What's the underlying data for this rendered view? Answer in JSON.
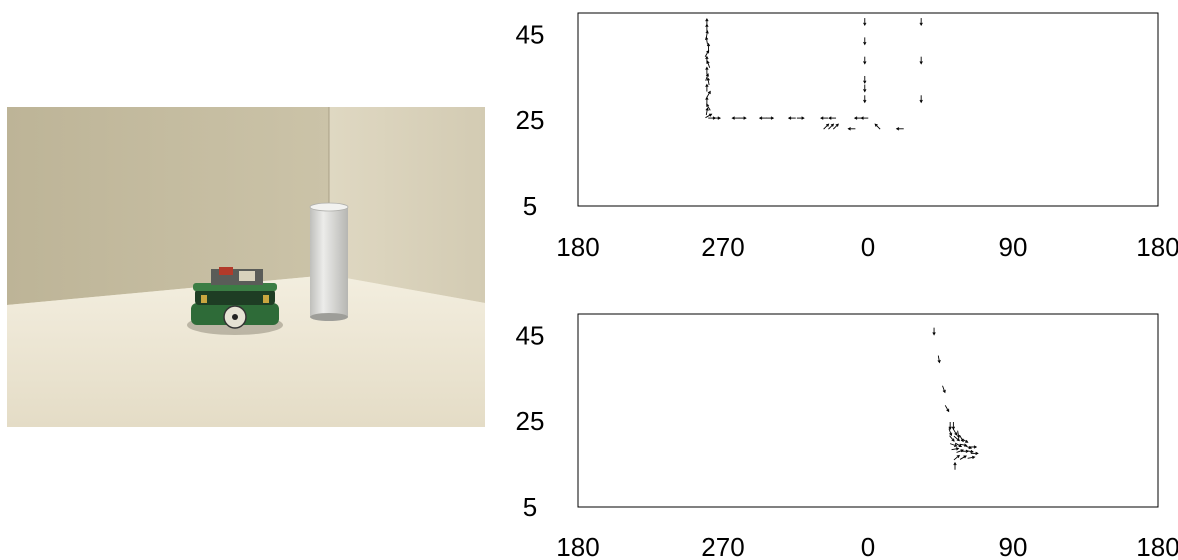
{
  "photo": {
    "description_icon": "robot-and-cylinder-photo",
    "colors": {
      "wall": "#c9c1a6",
      "floor": "#ebe4d2",
      "cylinder": "#d9d9d6",
      "robot_board": "#2f6e3a"
    }
  },
  "chart_data": [
    {
      "type": "scatter",
      "subtype": "vector-field",
      "title": "",
      "xlabel": "",
      "ylabel": "",
      "xlim": [
        180,
        540
      ],
      "ylim": [
        5,
        50
      ],
      "x_tick_labels": [
        "180",
        "270",
        "0",
        "90",
        "180"
      ],
      "x_tick_positions": [
        180,
        270,
        360,
        450,
        540
      ],
      "y_tick_labels": [
        "45",
        "25",
        "5"
      ],
      "y_tick_positions": [
        45,
        25,
        5
      ],
      "grid": false,
      "series": [
        {
          "marker": "arrow",
          "points": [
            {
              "x": 260,
              "y": 47.8,
              "angle": 90
            },
            {
              "x": 260,
              "y": 46.5,
              "angle": 90
            },
            {
              "x": 260,
              "y": 45.0,
              "angle": 80
            },
            {
              "x": 260,
              "y": 43.5,
              "angle": 100
            },
            {
              "x": 261,
              "y": 42.0,
              "angle": 90
            },
            {
              "x": 260,
              "y": 40.5,
              "angle": 60
            },
            {
              "x": 260,
              "y": 39.0,
              "angle": 90
            },
            {
              "x": 261,
              "y": 38.0,
              "angle": 110
            },
            {
              "x": 260,
              "y": 36.5,
              "angle": 90
            },
            {
              "x": 260,
              "y": 35.0,
              "angle": 70
            },
            {
              "x": 261,
              "y": 34.0,
              "angle": 100
            },
            {
              "x": 260,
              "y": 32.5,
              "angle": 90
            },
            {
              "x": 261,
              "y": 31.0,
              "angle": 60
            },
            {
              "x": 260,
              "y": 29.5,
              "angle": 90
            },
            {
              "x": 261,
              "y": 28.0,
              "angle": 120
            },
            {
              "x": 260,
              "y": 27.0,
              "angle": 80
            },
            {
              "x": 261,
              "y": 26.0,
              "angle": 30
            },
            {
              "x": 263,
              "y": 25.5,
              "angle": 0
            },
            {
              "x": 266,
              "y": 25.5,
              "angle": 0
            },
            {
              "x": 278,
              "y": 25.5,
              "angle": 180
            },
            {
              "x": 282,
              "y": 25.5,
              "angle": 0
            },
            {
              "x": 295,
              "y": 25.5,
              "angle": 180
            },
            {
              "x": 299,
              "y": 25.5,
              "angle": 0
            },
            {
              "x": 313,
              "y": 25.5,
              "angle": 180
            },
            {
              "x": 318,
              "y": 25.5,
              "angle": 0
            },
            {
              "x": 333,
              "y": 25.5,
              "angle": 180
            },
            {
              "x": 338,
              "y": 25.5,
              "angle": 180
            },
            {
              "x": 354,
              "y": 25.5,
              "angle": 180
            },
            {
              "x": 358,
              "y": 25.5,
              "angle": 180
            },
            {
              "x": 334,
              "y": 23.5,
              "angle": 45
            },
            {
              "x": 337,
              "y": 23.5,
              "angle": 45
            },
            {
              "x": 340,
              "y": 23.5,
              "angle": 45
            },
            {
              "x": 350,
              "y": 23.0,
              "angle": 180
            },
            {
              "x": 366,
              "y": 23.5,
              "angle": 135
            },
            {
              "x": 380,
              "y": 23.0,
              "angle": 180
            },
            {
              "x": 358,
              "y": 48.0,
              "angle": -90
            },
            {
              "x": 358,
              "y": 43.5,
              "angle": -90
            },
            {
              "x": 358,
              "y": 39.0,
              "angle": -90
            },
            {
              "x": 358,
              "y": 34.5,
              "angle": -90
            },
            {
              "x": 358,
              "y": 32.5,
              "angle": -90
            },
            {
              "x": 358,
              "y": 30.0,
              "angle": -90
            },
            {
              "x": 393,
              "y": 48.0,
              "angle": -90
            },
            {
              "x": 393,
              "y": 39.0,
              "angle": -90
            },
            {
              "x": 393,
              "y": 30.0,
              "angle": -90
            }
          ]
        }
      ]
    },
    {
      "type": "scatter",
      "subtype": "vector-field",
      "title": "",
      "xlabel": "",
      "ylabel": "",
      "xlim": [
        180,
        540
      ],
      "ylim": [
        5,
        50
      ],
      "x_tick_labels": [
        "180",
        "270",
        "0",
        "90",
        "180"
      ],
      "x_tick_positions": [
        180,
        270,
        360,
        450,
        540
      ],
      "y_tick_labels": [
        "45",
        "25",
        "5"
      ],
      "y_tick_positions": [
        45,
        25,
        5
      ],
      "grid": false,
      "series": [
        {
          "marker": "arrow",
          "points": [
            {
              "x": 401,
              "y": 46.0,
              "angle": -90
            },
            {
              "x": 404,
              "y": 39.5,
              "angle": -80
            },
            {
              "x": 407,
              "y": 32.5,
              "angle": -70
            },
            {
              "x": 409,
              "y": 28.0,
              "angle": -60
            },
            {
              "x": 411,
              "y": 24.0,
              "angle": -90
            },
            {
              "x": 413,
              "y": 24.0,
              "angle": -90
            },
            {
              "x": 411,
              "y": 22.5,
              "angle": -70
            },
            {
              "x": 414,
              "y": 22.5,
              "angle": -60
            },
            {
              "x": 416,
              "y": 22.0,
              "angle": -80
            },
            {
              "x": 412,
              "y": 21.0,
              "angle": -50
            },
            {
              "x": 415,
              "y": 21.0,
              "angle": -40
            },
            {
              "x": 418,
              "y": 21.0,
              "angle": -60
            },
            {
              "x": 420,
              "y": 20.5,
              "angle": -30
            },
            {
              "x": 413,
              "y": 19.5,
              "angle": -20
            },
            {
              "x": 416,
              "y": 19.5,
              "angle": -30
            },
            {
              "x": 419,
              "y": 19.5,
              "angle": -10
            },
            {
              "x": 422,
              "y": 19.0,
              "angle": -20
            },
            {
              "x": 425,
              "y": 19.0,
              "angle": 0
            },
            {
              "x": 414,
              "y": 18.5,
              "angle": 10
            },
            {
              "x": 417,
              "y": 18.0,
              "angle": 20
            },
            {
              "x": 420,
              "y": 18.0,
              "angle": 0
            },
            {
              "x": 423,
              "y": 18.0,
              "angle": -10
            },
            {
              "x": 426,
              "y": 17.5,
              "angle": 0
            },
            {
              "x": 415,
              "y": 16.5,
              "angle": 40
            },
            {
              "x": 419,
              "y": 16.5,
              "angle": 30
            },
            {
              "x": 424,
              "y": 16.5,
              "angle": 10
            },
            {
              "x": 414,
              "y": 14.5,
              "angle": 90
            }
          ]
        }
      ]
    }
  ]
}
